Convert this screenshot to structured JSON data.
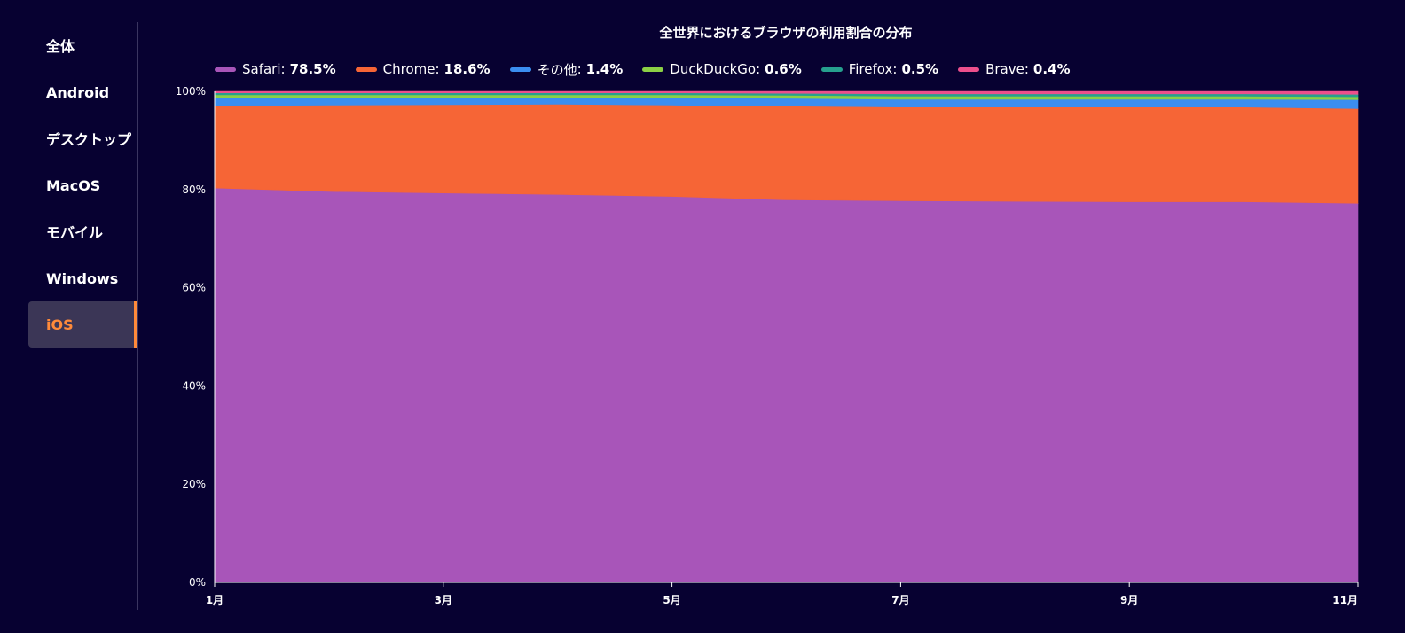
{
  "sidebar": {
    "items": [
      {
        "label": "全体",
        "active": false
      },
      {
        "label": "Android",
        "active": false
      },
      {
        "label": "デスクトップ",
        "active": false
      },
      {
        "label": "MacOS",
        "active": false
      },
      {
        "label": "モバイル",
        "active": false
      },
      {
        "label": "Windows",
        "active": false
      },
      {
        "label": "iOS",
        "active": true
      }
    ]
  },
  "colors": {
    "background": "#070131",
    "accent": "#ff8a3a",
    "active_item_bg": "#3b3656"
  },
  "chart_data": {
    "type": "area",
    "stacked": true,
    "title": "全世界におけるブラウザの利用割合の分布",
    "x": [
      "1月",
      "2月",
      "3月",
      "4月",
      "5月",
      "6月",
      "7月",
      "8月",
      "9月",
      "10月",
      "11月"
    ],
    "x_tick_labels": [
      "1月",
      "3月",
      "5月",
      "7月",
      "9月",
      "11月"
    ],
    "y_tick_labels": [
      "0%",
      "20%",
      "40%",
      "60%",
      "80%",
      "100%"
    ],
    "ylim": [
      0,
      100
    ],
    "legend_position": "top",
    "series": [
      {
        "name": "Safari",
        "legend_value": "78.5%",
        "color": "#a855b9",
        "values": [
          80.3,
          79.6,
          79.3,
          79.0,
          78.6,
          77.9,
          77.7,
          77.6,
          77.5,
          77.5,
          77.2
        ]
      },
      {
        "name": "Chrome",
        "legend_value": "18.6%",
        "color": "#f66536",
        "values": [
          16.8,
          17.6,
          18.0,
          18.4,
          18.6,
          19.1,
          19.1,
          19.2,
          19.3,
          19.3,
          19.3
        ]
      },
      {
        "name": "その他",
        "legend_value": "1.4%",
        "color": "#3b8ef0",
        "values": [
          1.6,
          1.5,
          1.4,
          1.3,
          1.5,
          1.6,
          1.6,
          1.6,
          1.6,
          1.6,
          1.8
        ]
      },
      {
        "name": "DuckDuckGo",
        "legend_value": "0.6%",
        "color": "#8bd045",
        "values": [
          0.6,
          0.6,
          0.6,
          0.6,
          0.6,
          0.6,
          0.6,
          0.6,
          0.6,
          0.6,
          0.6
        ]
      },
      {
        "name": "Firefox",
        "legend_value": "0.5%",
        "color": "#26a08e",
        "values": [
          0.4,
          0.4,
          0.4,
          0.4,
          0.4,
          0.4,
          0.5,
          0.5,
          0.5,
          0.5,
          0.5
        ]
      },
      {
        "name": "Brave",
        "legend_value": "0.4%",
        "color": "#ec4f8c",
        "values": [
          0.3,
          0.3,
          0.3,
          0.3,
          0.3,
          0.4,
          0.5,
          0.5,
          0.5,
          0.5,
          0.6
        ]
      }
    ]
  }
}
